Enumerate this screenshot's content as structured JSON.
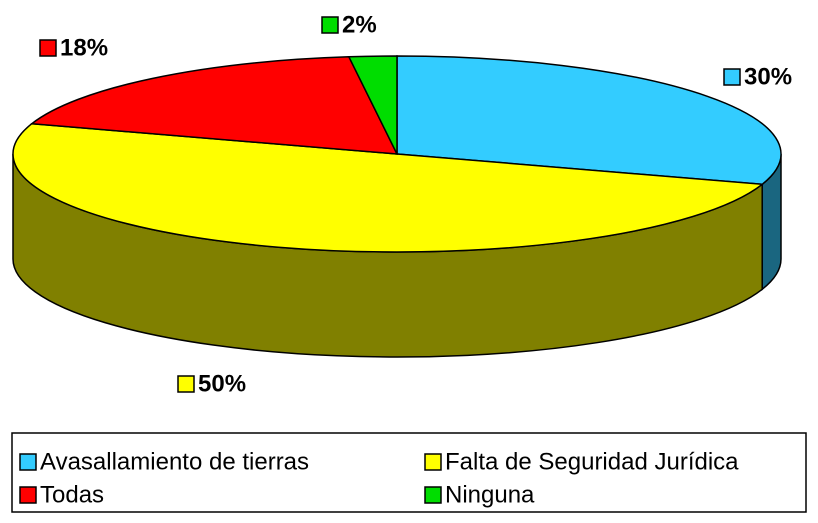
{
  "chart_data": {
    "type": "pie",
    "categories": [
      "Avasallamiento de tierras",
      "Falta de Seguridad Jurídica",
      "Todas",
      "Ninguna"
    ],
    "values": [
      30,
      50,
      18,
      2
    ],
    "value_labels": [
      "30%",
      "50%",
      "18%",
      "2%"
    ],
    "colors": [
      "#33ccff",
      "#ffff00",
      "#ff0000",
      "#00dd00"
    ],
    "legend": "bottom"
  }
}
